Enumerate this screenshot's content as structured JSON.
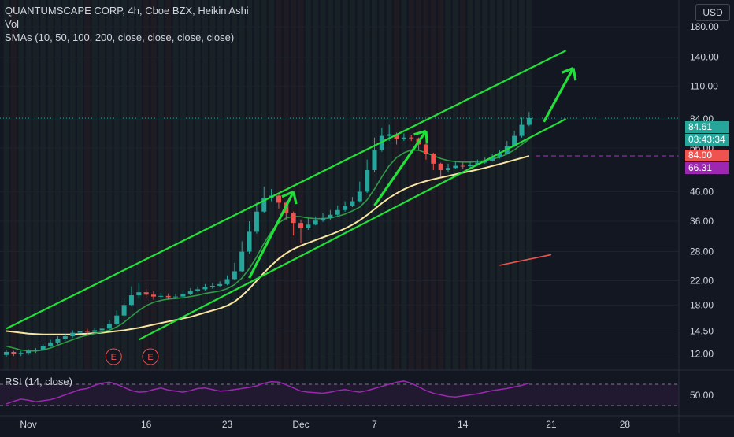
{
  "header": {
    "title": "QUANTUMSCAPE CORP, 4h, Cboe BZX, Heikin Ashi",
    "vol_label": "Vol",
    "sma_label": "SMAs (10, 50, 100, 200, close, close, close, close)",
    "currency": "USD"
  },
  "rsi": {
    "label": "RSI (14, close)",
    "tick_label": "50.00",
    "series": [
      33,
      38,
      42,
      40,
      37,
      39,
      41,
      45,
      50,
      55,
      60,
      62,
      68,
      72,
      74,
      70,
      64,
      58,
      55,
      56,
      60,
      63,
      59,
      57,
      55,
      58,
      62,
      63,
      60,
      57,
      58,
      60,
      62,
      64,
      67,
      72,
      75,
      74,
      69,
      63,
      57,
      55,
      54,
      53,
      55,
      58,
      60,
      57,
      55,
      58,
      62,
      66,
      70,
      74,
      76,
      72,
      65,
      58,
      53,
      50,
      47,
      46,
      48,
      50,
      52,
      55,
      58,
      60,
      62,
      65,
      68,
      72
    ],
    "colors": {
      "line": "#9c27b0",
      "band": "#2a1a3a"
    }
  },
  "tags": {
    "last_price": "84.61",
    "countdown": "03:43:34",
    "level_red": "84.00",
    "level_purple": "66.31",
    "colors": {
      "last_price": "#26a69a",
      "countdown": "#26a69a",
      "level_red": "#ef5350",
      "level_purple": "#9c27b0"
    }
  },
  "events": [
    "E",
    "E"
  ],
  "chart_data": {
    "type": "candlestick",
    "title": "QUANTUMSCAPE CORP, 4h, Cboe BZX, Heikin Ashi",
    "y_scale": "log",
    "ylim": [
      10.5,
      200
    ],
    "yticks": [
      "180.00",
      "140.00",
      "110.00",
      "84.00",
      "66.00",
      "46.00",
      "36.00",
      "28.00",
      "22.00",
      "18.00",
      "14.50",
      "12.00"
    ],
    "xticks": [
      "Nov",
      "16",
      "23",
      "Dec",
      "7",
      "14",
      "21",
      "28"
    ],
    "candles": [
      {
        "o": 11.9,
        "c": 12.2,
        "h": 12.4,
        "l": 11.7
      },
      {
        "o": 12.2,
        "c": 12.0,
        "h": 12.3,
        "l": 11.8
      },
      {
        "o": 12.0,
        "c": 12.1,
        "h": 12.3,
        "l": 11.8
      },
      {
        "o": 12.1,
        "c": 12.3,
        "h": 12.5,
        "l": 11.9
      },
      {
        "o": 12.3,
        "c": 12.4,
        "h": 12.6,
        "l": 12.1
      },
      {
        "o": 12.4,
        "c": 12.8,
        "h": 13.0,
        "l": 12.3
      },
      {
        "o": 12.8,
        "c": 13.2,
        "h": 13.5,
        "l": 12.7
      },
      {
        "o": 13.2,
        "c": 13.6,
        "h": 13.9,
        "l": 13.0
      },
      {
        "o": 13.6,
        "c": 13.9,
        "h": 14.2,
        "l": 13.4
      },
      {
        "o": 13.9,
        "c": 14.3,
        "h": 14.6,
        "l": 13.7
      },
      {
        "o": 14.3,
        "c": 14.5,
        "h": 14.9,
        "l": 14.0
      },
      {
        "o": 14.5,
        "c": 14.4,
        "h": 14.8,
        "l": 14.1
      },
      {
        "o": 14.4,
        "c": 14.6,
        "h": 14.9,
        "l": 14.2
      },
      {
        "o": 14.6,
        "c": 14.8,
        "h": 15.2,
        "l": 14.4
      },
      {
        "o": 14.8,
        "c": 15.4,
        "h": 15.9,
        "l": 14.6
      },
      {
        "o": 15.4,
        "c": 16.5,
        "h": 17.2,
        "l": 15.2
      },
      {
        "o": 16.5,
        "c": 18.0,
        "h": 19.0,
        "l": 16.3
      },
      {
        "o": 18.0,
        "c": 19.5,
        "h": 21.0,
        "l": 17.8
      },
      {
        "o": 19.5,
        "c": 20.0,
        "h": 21.5,
        "l": 19.0
      },
      {
        "o": 20.0,
        "c": 19.6,
        "h": 20.6,
        "l": 19.0
      },
      {
        "o": 19.6,
        "c": 19.3,
        "h": 20.2,
        "l": 18.8
      },
      {
        "o": 19.3,
        "c": 19.4,
        "h": 19.9,
        "l": 18.9
      },
      {
        "o": 19.4,
        "c": 19.2,
        "h": 19.8,
        "l": 18.8
      },
      {
        "o": 19.2,
        "c": 19.3,
        "h": 19.7,
        "l": 18.9
      },
      {
        "o": 19.3,
        "c": 19.7,
        "h": 20.1,
        "l": 19.0
      },
      {
        "o": 19.7,
        "c": 20.2,
        "h": 20.7,
        "l": 19.5
      },
      {
        "o": 20.2,
        "c": 20.5,
        "h": 21.0,
        "l": 20.0
      },
      {
        "o": 20.5,
        "c": 20.9,
        "h": 21.4,
        "l": 20.3
      },
      {
        "o": 20.9,
        "c": 21.1,
        "h": 21.6,
        "l": 20.6
      },
      {
        "o": 21.1,
        "c": 21.4,
        "h": 21.9,
        "l": 20.9
      },
      {
        "o": 21.4,
        "c": 22.3,
        "h": 23.0,
        "l": 21.2
      },
      {
        "o": 22.3,
        "c": 23.8,
        "h": 25.5,
        "l": 22.1
      },
      {
        "o": 23.8,
        "c": 28.0,
        "h": 30.5,
        "l": 23.6
      },
      {
        "o": 28.0,
        "c": 33.0,
        "h": 36.0,
        "l": 27.5
      },
      {
        "o": 33.0,
        "c": 39.0,
        "h": 42.0,
        "l": 32.5
      },
      {
        "o": 39.0,
        "c": 43.5,
        "h": 48.0,
        "l": 38.5
      },
      {
        "o": 43.5,
        "c": 44.5,
        "h": 47.0,
        "l": 42.5
      },
      {
        "o": 44.5,
        "c": 42.0,
        "h": 45.0,
        "l": 40.0
      },
      {
        "o": 42.0,
        "c": 38.5,
        "h": 42.5,
        "l": 36.5
      },
      {
        "o": 38.5,
        "c": 35.5,
        "h": 39.0,
        "l": 32.0
      },
      {
        "o": 35.5,
        "c": 34.0,
        "h": 36.5,
        "l": 30.0
      },
      {
        "o": 34.0,
        "c": 35.0,
        "h": 37.0,
        "l": 33.5
      },
      {
        "o": 35.0,
        "c": 36.2,
        "h": 37.5,
        "l": 34.8
      },
      {
        "o": 36.2,
        "c": 37.0,
        "h": 38.5,
        "l": 35.8
      },
      {
        "o": 37.0,
        "c": 38.0,
        "h": 39.5,
        "l": 36.5
      },
      {
        "o": 38.0,
        "c": 39.5,
        "h": 41.0,
        "l": 37.5
      },
      {
        "o": 39.5,
        "c": 41.0,
        "h": 42.5,
        "l": 39.0
      },
      {
        "o": 41.0,
        "c": 42.5,
        "h": 44.0,
        "l": 40.5
      },
      {
        "o": 42.5,
        "c": 46.0,
        "h": 50.0,
        "l": 42.0
      },
      {
        "o": 46.0,
        "c": 55.0,
        "h": 60.0,
        "l": 45.5
      },
      {
        "o": 55.0,
        "c": 65.0,
        "h": 72.0,
        "l": 54.0
      },
      {
        "o": 65.0,
        "c": 73.0,
        "h": 78.0,
        "l": 64.0
      },
      {
        "o": 73.0,
        "c": 74.0,
        "h": 80.0,
        "l": 70.0
      },
      {
        "o": 74.0,
        "c": 71.0,
        "h": 75.0,
        "l": 68.0
      },
      {
        "o": 71.0,
        "c": 72.0,
        "h": 74.5,
        "l": 70.0
      },
      {
        "o": 72.0,
        "c": 71.5,
        "h": 73.5,
        "l": 70.0
      },
      {
        "o": 71.5,
        "c": 68.0,
        "h": 72.0,
        "l": 65.0
      },
      {
        "o": 68.0,
        "c": 63.0,
        "h": 68.5,
        "l": 60.0
      },
      {
        "o": 63.0,
        "c": 58.0,
        "h": 63.5,
        "l": 55.0
      },
      {
        "o": 58.0,
        "c": 55.0,
        "h": 58.5,
        "l": 52.0
      },
      {
        "o": 55.0,
        "c": 56.0,
        "h": 58.0,
        "l": 54.0
      },
      {
        "o": 56.0,
        "c": 57.0,
        "h": 59.0,
        "l": 55.5
      },
      {
        "o": 57.0,
        "c": 56.8,
        "h": 58.5,
        "l": 55.5
      },
      {
        "o": 56.8,
        "c": 57.5,
        "h": 59.0,
        "l": 56.0
      },
      {
        "o": 57.5,
        "c": 58.5,
        "h": 60.0,
        "l": 57.0
      },
      {
        "o": 58.5,
        "c": 59.5,
        "h": 61.0,
        "l": 58.0
      },
      {
        "o": 59.5,
        "c": 61.0,
        "h": 63.0,
        "l": 59.0
      },
      {
        "o": 61.0,
        "c": 63.0,
        "h": 65.0,
        "l": 60.5
      },
      {
        "o": 63.0,
        "c": 67.0,
        "h": 70.0,
        "l": 62.5
      },
      {
        "o": 67.0,
        "c": 73.0,
        "h": 76.0,
        "l": 66.5
      },
      {
        "o": 73.0,
        "c": 80.0,
        "h": 85.0,
        "l": 72.0
      },
      {
        "o": 80.0,
        "c": 84.61,
        "h": 89.0,
        "l": 79.0
      }
    ],
    "overlays": {
      "sma_green": [
        12.8,
        12.6,
        12.4,
        12.3,
        12.3,
        12.4,
        12.6,
        12.9,
        13.2,
        13.5,
        13.8,
        14.0,
        14.2,
        14.4,
        14.6,
        15.0,
        15.6,
        16.4,
        17.2,
        17.9,
        18.4,
        18.7,
        18.9,
        19.0,
        19.1,
        19.3,
        19.5,
        19.8,
        20.0,
        20.2,
        20.6,
        21.3,
        22.5,
        24.3,
        26.8,
        30.0,
        33.0,
        35.5,
        37.0,
        37.5,
        37.4,
        37.0,
        36.8,
        36.8,
        37.0,
        37.5,
        38.2,
        39.2,
        40.5,
        43.0,
        47.0,
        52.0,
        57.0,
        61.0,
        63.5,
        65.0,
        64.8,
        63.5,
        62.0,
        60.5,
        59.5,
        59.0,
        58.8,
        58.8,
        59.0,
        59.5,
        60.2,
        61.2,
        62.8,
        65.0,
        68.0,
        71.0
      ],
      "sma_yellow": [
        14.5,
        14.4,
        14.3,
        14.2,
        14.15,
        14.1,
        14.1,
        14.1,
        14.1,
        14.1,
        14.15,
        14.2,
        14.25,
        14.3,
        14.4,
        14.5,
        14.6,
        14.75,
        14.9,
        15.1,
        15.3,
        15.5,
        15.7,
        15.9,
        16.1,
        16.3,
        16.6,
        16.9,
        17.2,
        17.5,
        17.9,
        18.5,
        19.4,
        20.6,
        22.0,
        23.5,
        25.0,
        26.4,
        27.6,
        28.6,
        29.4,
        30.1,
        30.8,
        31.5,
        32.2,
        33.0,
        33.9,
        35.0,
        36.3,
        37.9,
        39.8,
        41.8,
        43.7,
        45.4,
        46.9,
        48.2,
        49.3,
        50.2,
        51.0,
        51.7,
        52.4,
        53.1,
        53.8,
        54.5,
        55.2,
        56.0,
        56.9,
        57.8,
        58.8,
        59.8,
        60.8,
        61.8
      ]
    },
    "drawings": {
      "channel_upper": [
        {
          "i": 0,
          "v": 14.8
        },
        {
          "i": 76,
          "v": 148
        }
      ],
      "channel_lower": [
        {
          "i": 18,
          "v": 13.5
        },
        {
          "i": 76,
          "v": 84.0
        }
      ],
      "arrows": [
        {
          "from": {
            "i": 33,
            "v": 22.5
          },
          "to": {
            "i": 39,
            "v": 46.0
          }
        },
        {
          "from": {
            "i": 50,
            "v": 41.0
          },
          "to": {
            "i": 57,
            "v": 76.0
          }
        },
        {
          "from": {
            "i": 73,
            "v": 82.0
          },
          "to": {
            "i": 77,
            "v": 128.0
          }
        }
      ],
      "red_line": [
        {
          "i": 67,
          "v": 25.0
        },
        {
          "i": 74,
          "v": 27.3
        }
      ],
      "dashed_level": 66.31
    },
    "xtick_indices": [
      3,
      19,
      30,
      40,
      50,
      62,
      74,
      84
    ],
    "event_indices": [
      15,
      20
    ],
    "colors": {
      "up": "#26a69a",
      "down": "#ef5350",
      "channel": "#22e03a",
      "sma_green": "#2e9b46",
      "sma_yellow": "#f7e5a0",
      "grid": "#1e222d",
      "dashed": "#9c27b0"
    }
  }
}
